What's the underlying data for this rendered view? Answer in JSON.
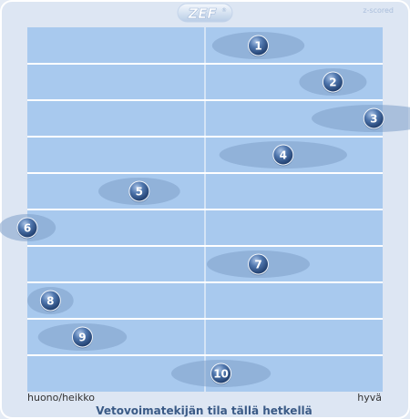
{
  "header": {
    "logo": "ZEF",
    "logo_mark": "®",
    "badge": "z-scored"
  },
  "chart_data": {
    "type": "scatter",
    "xlabel": "Vetovoimatekijän tila tällä hetkellä",
    "x_min_label": "huono/heikko",
    "x_max_label": "hyvä",
    "xlim": [
      -1,
      1
    ],
    "grid": true,
    "points": [
      {
        "label": "1",
        "x": 0.3,
        "spread": 0.26
      },
      {
        "label": "2",
        "x": 0.72,
        "spread": 0.19
      },
      {
        "label": "3",
        "x": 0.95,
        "spread": 0.35
      },
      {
        "label": "4",
        "x": 0.44,
        "spread": 0.36
      },
      {
        "label": "5",
        "x": -0.37,
        "spread": 0.23
      },
      {
        "label": "6",
        "x": -1.0,
        "spread": 0.16
      },
      {
        "label": "7",
        "x": 0.3,
        "spread": 0.29
      },
      {
        "label": "8",
        "x": -0.87,
        "spread": 0.13
      },
      {
        "label": "9",
        "x": -0.69,
        "spread": 0.25
      },
      {
        "label": "10",
        "x": 0.09,
        "spread": 0.28
      }
    ]
  }
}
